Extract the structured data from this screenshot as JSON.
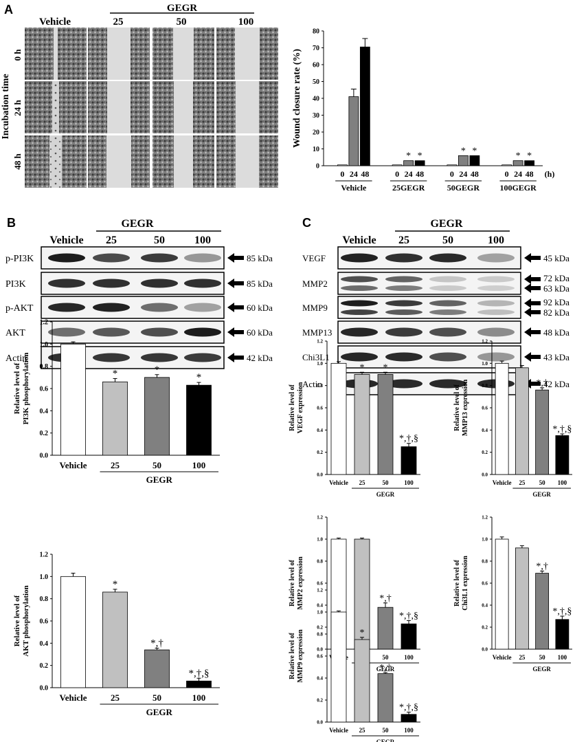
{
  "panel_labels": [
    "A",
    "B",
    "C"
  ],
  "panel_a": {
    "microscopy": {
      "group_header": "GEGR",
      "column_labels": [
        "Vehicle",
        "25",
        "50",
        "100"
      ],
      "row_axis_label": "Incubation time",
      "row_labels": [
        "0 h",
        "24 h",
        "48 h"
      ]
    }
  },
  "panel_b": {
    "blot": {
      "group_header": "GEGR",
      "lane_labels": [
        "Vehicle",
        "25",
        "50",
        "100"
      ],
      "rows": [
        {
          "protein": "p-PI3K",
          "kda": "85 kDa",
          "intensity": [
            0.95,
            0.72,
            0.8,
            0.35
          ]
        },
        {
          "protein": "PI3K",
          "kda": "85 kDa",
          "intensity": [
            0.85,
            0.85,
            0.85,
            0.85
          ]
        },
        {
          "protein": "p-AKT",
          "kda": "60 kDa",
          "intensity": [
            0.9,
            0.92,
            0.55,
            0.3
          ]
        },
        {
          "protein": "AKT",
          "kda": "60 kDa",
          "intensity": [
            0.55,
            0.65,
            0.7,
            0.95
          ]
        },
        {
          "protein": "Actin",
          "kda": "42 kDa",
          "intensity": [
            0.85,
            0.82,
            0.82,
            0.8
          ]
        }
      ]
    }
  },
  "panel_c": {
    "blot": {
      "group_header": "GEGR",
      "lane_labels": [
        "Vehicle",
        "25",
        "50",
        "100"
      ],
      "rows": [
        {
          "protein": "VEGF",
          "kda": [
            "45 kDa"
          ],
          "intensity": [
            0.92,
            0.85,
            0.88,
            0.3
          ]
        },
        {
          "protein": "MMP2",
          "kda": [
            "72 kDa",
            "63 kDa"
          ],
          "intensity": [
            0.7,
            0.6,
            0.12,
            0.1
          ]
        },
        {
          "protein": "MMP9",
          "kda": [
            "92 kDa",
            "82 kDa"
          ],
          "intensity": [
            0.95,
            0.8,
            0.6,
            0.2
          ]
        },
        {
          "protein": "MMP13",
          "kda": [
            "48 kDa"
          ],
          "intensity": [
            0.9,
            0.8,
            0.7,
            0.4
          ]
        },
        {
          "protein": "Chi3L1",
          "kda": [
            "43 kDa"
          ],
          "intensity": [
            0.9,
            0.88,
            0.7,
            0.35
          ]
        },
        {
          "protein": "Actin",
          "kda": [
            "42 kDa"
          ],
          "intensity": [
            0.9,
            0.88,
            0.88,
            0.88
          ]
        }
      ]
    }
  },
  "chart_data": [
    {
      "id": "wound",
      "type": "bar",
      "ylabel": "Wound closure rate (%)",
      "ylim": [
        0,
        80
      ],
      "yticks": [
        0,
        10,
        20,
        30,
        40,
        50,
        60,
        70,
        80
      ],
      "x_unit": "(h)",
      "groups": [
        "Vehicle",
        "25GEGR",
        "50GEGR",
        "100GEGR"
      ],
      "categories": [
        "0",
        "24",
        "48"
      ],
      "values": [
        [
          0.5,
          41,
          70.5
        ],
        [
          0.5,
          3,
          3
        ],
        [
          0.5,
          6,
          6
        ],
        [
          0.5,
          3,
          3
        ]
      ],
      "errors": [
        [
          0,
          4.5,
          5
        ],
        [
          0,
          0,
          0
        ],
        [
          0,
          0,
          0
        ],
        [
          0,
          0,
          0
        ]
      ],
      "annotations": [
        [
          "",
          "",
          ""
        ],
        [
          "",
          "*",
          "*"
        ],
        [
          "",
          "*",
          "*"
        ],
        [
          "",
          "*",
          "*"
        ]
      ],
      "colors": [
        "#ffffff",
        "#808080",
        "#000000"
      ]
    },
    {
      "id": "pi3k",
      "type": "bar",
      "ylabel": [
        "Relative level of",
        "PI3K phosphorylation"
      ],
      "ylim": [
        0,
        1.2
      ],
      "yticks": [
        "0.0",
        "0.2",
        "0.4",
        "0.6",
        "0.8",
        "1.0",
        "1.2"
      ],
      "categories": [
        "Vehicle",
        "25",
        "50",
        "100"
      ],
      "group_label": "GEGR",
      "values": [
        1.0,
        0.66,
        0.7,
        0.63
      ],
      "errors": [
        0.02,
        0.03,
        0.025,
        0.025
      ],
      "annotations": [
        "",
        "*",
        "*",
        "*"
      ],
      "colors": [
        "#ffffff",
        "#c0c0c0",
        "#808080",
        "#000000"
      ]
    },
    {
      "id": "akt",
      "type": "bar",
      "ylabel": [
        "Relative level of",
        "AKT phosphorylation"
      ],
      "ylim": [
        0,
        1.2
      ],
      "yticks": [
        "0.0",
        "0.2",
        "0.4",
        "0.6",
        "0.8",
        "1.0",
        "1.2"
      ],
      "categories": [
        "Vehicle",
        "25",
        "50",
        "100"
      ],
      "group_label": "GEGR",
      "values": [
        1.0,
        0.86,
        0.34,
        0.06
      ],
      "errors": [
        0.03,
        0.025,
        0.015,
        0.025
      ],
      "annotations": [
        "",
        "*",
        "*,†",
        "*,†,§"
      ],
      "colors": [
        "#ffffff",
        "#c0c0c0",
        "#808080",
        "#000000"
      ]
    },
    {
      "id": "vegf",
      "type": "bar",
      "ylabel": [
        "Relative level of",
        "VEGF expression"
      ],
      "ylim": [
        0,
        1.2
      ],
      "yticks": [
        "0.0",
        "0.2",
        "0.4",
        "0.6",
        "0.8",
        "1.0",
        "1.2"
      ],
      "categories": [
        "Vehicle",
        "25",
        "50",
        "100"
      ],
      "group_label": "GEGR",
      "values": [
        1.0,
        0.9,
        0.9,
        0.25
      ],
      "errors": [
        0.015,
        0.02,
        0.02,
        0.03
      ],
      "annotations": [
        "",
        "*",
        "*",
        "*,†,§"
      ],
      "colors": [
        "#ffffff",
        "#c0c0c0",
        "#808080",
        "#000000"
      ]
    },
    {
      "id": "mmp13",
      "type": "bar",
      "ylabel": [
        "Relative level of",
        "MMP13 expression"
      ],
      "ylim": [
        0,
        1.2
      ],
      "yticks": [
        "0.0",
        "0.2",
        "0.4",
        "0.6",
        "0.8",
        "1.0",
        "1.2"
      ],
      "categories": [
        "Vehicle",
        "25",
        "50",
        "100"
      ],
      "group_label": "GEGR",
      "values": [
        1.0,
        0.96,
        0.76,
        0.35
      ],
      "errors": [
        0.02,
        0.02,
        0.02,
        0.015
      ],
      "annotations": [
        "",
        "",
        "*,†",
        "*,†,§"
      ],
      "colors": [
        "#ffffff",
        "#c0c0c0",
        "#808080",
        "#000000"
      ]
    },
    {
      "id": "mmp2",
      "type": "bar",
      "ylabel": [
        "Relative level of",
        "MMP2 expression"
      ],
      "ylim": [
        0,
        1.2
      ],
      "yticks": [
        "0.0",
        "0.2",
        "0.4",
        "0.6",
        "0.8",
        "1.0",
        "1.2"
      ],
      "categories": [
        "Vehicle",
        "25",
        "50",
        "100"
      ],
      "group_label": "GEGR",
      "values": [
        1.0,
        1.0,
        0.38,
        0.23
      ],
      "errors": [
        0.01,
        0.01,
        0.04,
        0.03
      ],
      "annotations": [
        "",
        "",
        "*,†",
        "*,†,§"
      ],
      "colors": [
        "#ffffff",
        "#c0c0c0",
        "#808080",
        "#000000"
      ]
    },
    {
      "id": "chi3l1",
      "type": "bar",
      "ylabel": [
        "Relative level of",
        "Chi3L1 expression"
      ],
      "ylim": [
        0,
        1.2
      ],
      "yticks": [
        "0.0",
        "0.2",
        "0.4",
        "0.6",
        "0.8",
        "1.0",
        "1.2"
      ],
      "categories": [
        "Vehicle",
        "25",
        "50",
        "100"
      ],
      "group_label": "GEGR",
      "values": [
        1.0,
        0.92,
        0.69,
        0.27
      ],
      "errors": [
        0.02,
        0.02,
        0.02,
        0.03
      ],
      "annotations": [
        "",
        "",
        "*,†",
        "*,†,§"
      ],
      "colors": [
        "#ffffff",
        "#c0c0c0",
        "#808080",
        "#000000"
      ]
    },
    {
      "id": "mmp9",
      "type": "bar",
      "ylabel": [
        "Relative level of",
        "MMP9 expression"
      ],
      "ylim": [
        0,
        1.2
      ],
      "yticks": [
        "0.0",
        "0.2",
        "0.4",
        "0.6",
        "0.8",
        "1.0",
        "1.2"
      ],
      "categories": [
        "Vehicle",
        "25",
        "50",
        "100"
      ],
      "group_label": "GEGR",
      "values": [
        1.0,
        0.75,
        0.44,
        0.07
      ],
      "errors": [
        0.01,
        0.02,
        0.01,
        0.02
      ],
      "annotations": [
        "",
        "*",
        "*,†",
        "*,†,§"
      ],
      "colors": [
        "#ffffff",
        "#c0c0c0",
        "#808080",
        "#000000"
      ]
    }
  ]
}
